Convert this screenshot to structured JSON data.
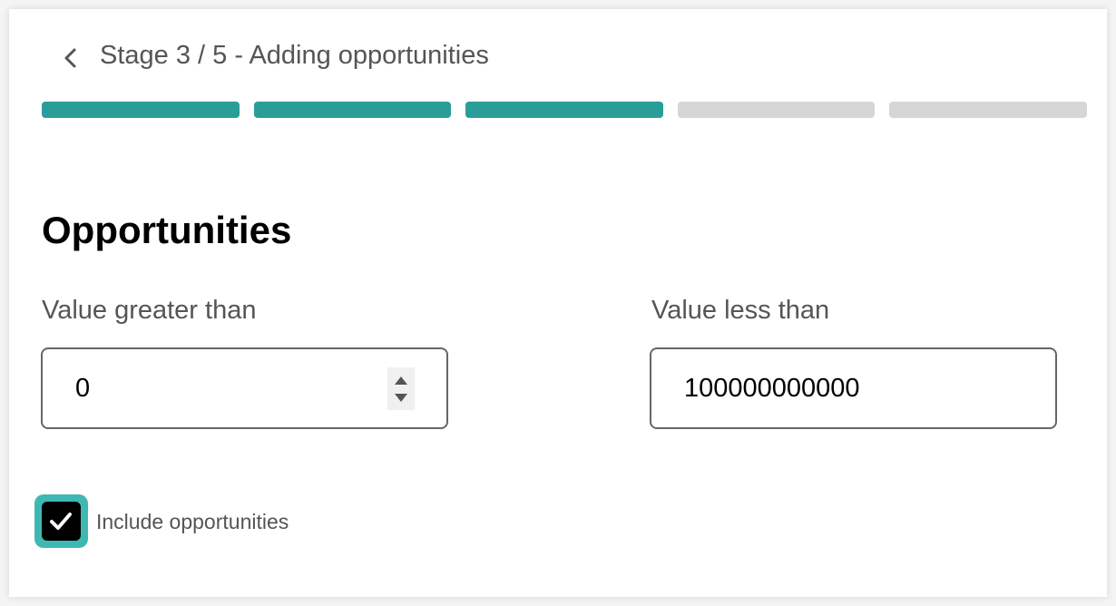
{
  "header": {
    "title": "Stage 3 / 5 - Adding opportunities",
    "back_icon": "chevron-left-icon"
  },
  "progress": {
    "current_stage": 3,
    "total_stages": 5,
    "colors": {
      "complete": "#2a9d99",
      "incomplete": "#d6d6d6"
    }
  },
  "section": {
    "heading": "Opportunities"
  },
  "fields": {
    "greater_than": {
      "label": "Value greater than",
      "value": "0"
    },
    "less_than": {
      "label": "Value less than",
      "value": "100000000000"
    }
  },
  "include": {
    "label": "Include opportunities",
    "checked": true,
    "accent": "#3fb8b3"
  }
}
